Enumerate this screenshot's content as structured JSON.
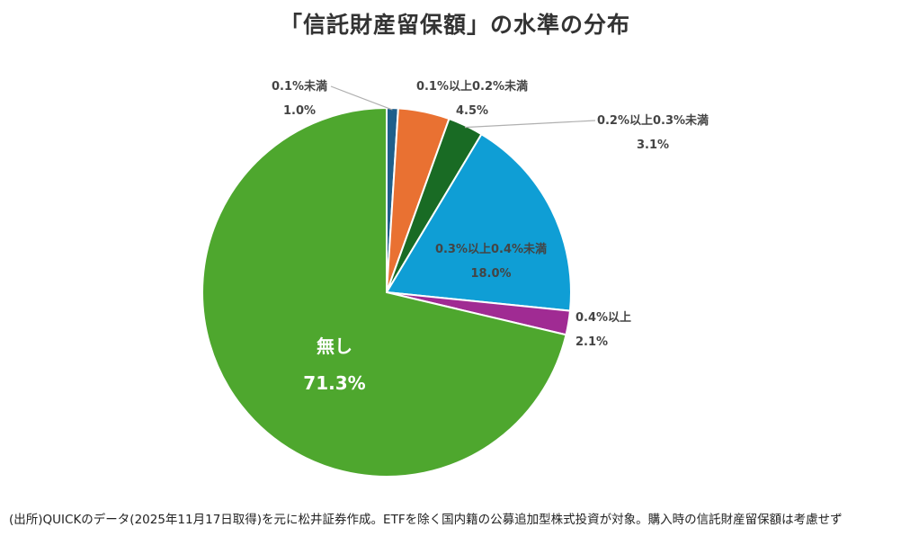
{
  "chart_data": {
    "type": "pie",
    "title": "「信託財産留保額」の水準の分布",
    "slices": [
      {
        "label": "0.1%未満",
        "value": 1.0,
        "value_label": "1.0%",
        "color": "#1F5F8B"
      },
      {
        "label": "0.1%以上0.2%未満",
        "value": 4.5,
        "value_label": "4.5%",
        "color": "#E97132"
      },
      {
        "label": "0.2%以上0.3%未満",
        "value": 3.1,
        "value_label": "3.1%",
        "color": "#196B24"
      },
      {
        "label": "0.3%以上0.4%未満",
        "value": 18.0,
        "value_label": "18.0%",
        "color": "#0F9ED5"
      },
      {
        "label": "0.4%以上",
        "value": 2.1,
        "value_label": "2.1%",
        "color": "#A02B93"
      },
      {
        "label": "無し",
        "value": 71.3,
        "value_label": "71.3%",
        "color": "#4EA72E"
      }
    ],
    "start_angle_deg": 0,
    "direction": "clockwise",
    "legend": "none"
  },
  "source_note": "(出所)QUICKのデータ(2025年11月17日取得)を元に松井証券作成。ETFを除く国内籍の公募追加型株式投資が対象。購入時の信託財産留保額は考慮せず"
}
